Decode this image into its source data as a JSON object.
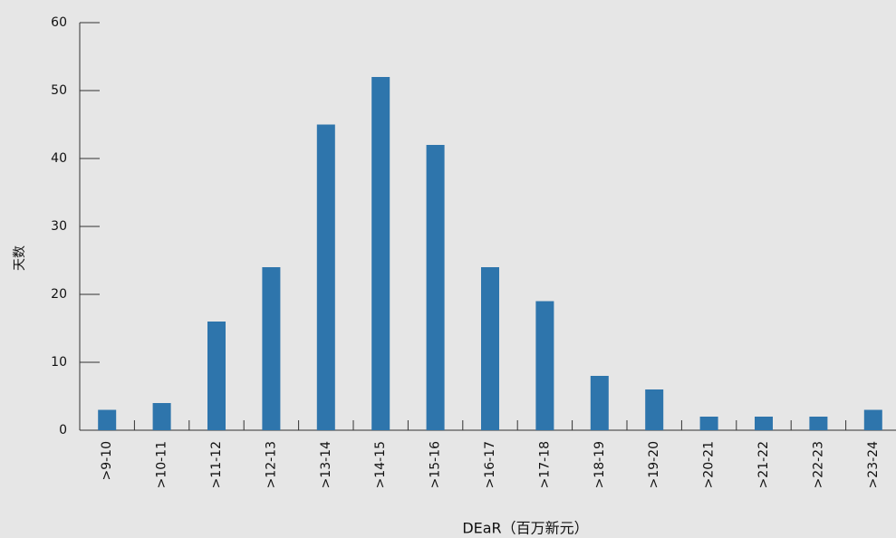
{
  "chart_data": {
    "type": "bar",
    "x_label": "DEaR（百万新元）",
    "y_label": "天数",
    "categories": [
      ">9-10",
      ">10-11",
      ">11-12",
      ">12-13",
      ">13-14",
      ">14-15",
      ">15-16",
      ">16-17",
      ">17-18",
      ">18-19",
      ">19-20",
      ">20-21",
      ">21-22",
      ">22-23",
      ">23-24"
    ],
    "values": [
      3,
      4,
      16,
      24,
      45,
      52,
      42,
      24,
      19,
      8,
      6,
      2,
      2,
      2,
      3
    ],
    "color": "#2e75ac",
    "ylim": [
      0,
      60
    ],
    "yticks": [
      0,
      10,
      20,
      30,
      40,
      50,
      60
    ],
    "grid": false
  }
}
